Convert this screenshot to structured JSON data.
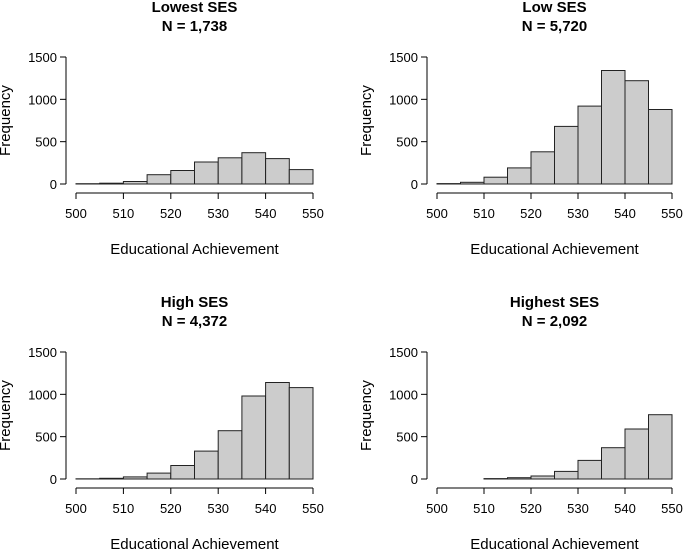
{
  "colors": {
    "bar_fill": "#cccccc",
    "bar_stroke": "#222222"
  },
  "chart_data": [
    {
      "type": "bar",
      "title": "Lowest SES",
      "subtitle": "N = 1,738",
      "xlabel": "Educational Achievement",
      "ylabel": "Frequency",
      "xlim": [
        500,
        550
      ],
      "ylim": [
        0,
        1500
      ],
      "xticks": [
        500,
        510,
        520,
        530,
        540,
        550
      ],
      "yticks": [
        0,
        500,
        1000,
        1500
      ],
      "bin_edges": [
        500,
        505,
        510,
        515,
        520,
        525,
        530,
        535,
        540,
        545,
        550
      ],
      "values": [
        3,
        10,
        30,
        110,
        160,
        260,
        310,
        370,
        300,
        170
      ]
    },
    {
      "type": "bar",
      "title": "Low SES",
      "subtitle": "N = 5,720",
      "xlabel": "Educational Achievement",
      "ylabel": "Frequency",
      "xlim": [
        500,
        550
      ],
      "ylim": [
        0,
        1500
      ],
      "xticks": [
        500,
        510,
        520,
        530,
        540,
        550
      ],
      "yticks": [
        0,
        500,
        1000,
        1500
      ],
      "bin_edges": [
        500,
        505,
        510,
        515,
        520,
        525,
        530,
        535,
        540,
        545,
        550
      ],
      "values": [
        5,
        20,
        80,
        190,
        380,
        680,
        920,
        1340,
        1220,
        880
      ]
    },
    {
      "type": "bar",
      "title": "High SES",
      "subtitle": "N = 4,372",
      "xlabel": "Educational Achievement",
      "ylabel": "Frequency",
      "xlim": [
        500,
        550
      ],
      "ylim": [
        0,
        1500
      ],
      "xticks": [
        500,
        510,
        520,
        530,
        540,
        550
      ],
      "yticks": [
        0,
        500,
        1000,
        1500
      ],
      "bin_edges": [
        500,
        505,
        510,
        515,
        520,
        525,
        530,
        535,
        540,
        545,
        550
      ],
      "values": [
        2,
        8,
        25,
        70,
        160,
        330,
        570,
        980,
        1140,
        1080
      ]
    },
    {
      "type": "bar",
      "title": "Highest SES",
      "subtitle": "N = 2,092",
      "xlabel": "Educational Achievement",
      "ylabel": "Frequency",
      "xlim": [
        500,
        550
      ],
      "ylim": [
        0,
        1500
      ],
      "xticks": [
        500,
        510,
        520,
        530,
        540,
        550
      ],
      "yticks": [
        0,
        500,
        1000,
        1500
      ],
      "bin_edges": [
        510,
        515,
        520,
        525,
        530,
        535,
        540,
        545,
        550
      ],
      "values": [
        5,
        15,
        35,
        90,
        220,
        370,
        590,
        760
      ]
    }
  ]
}
